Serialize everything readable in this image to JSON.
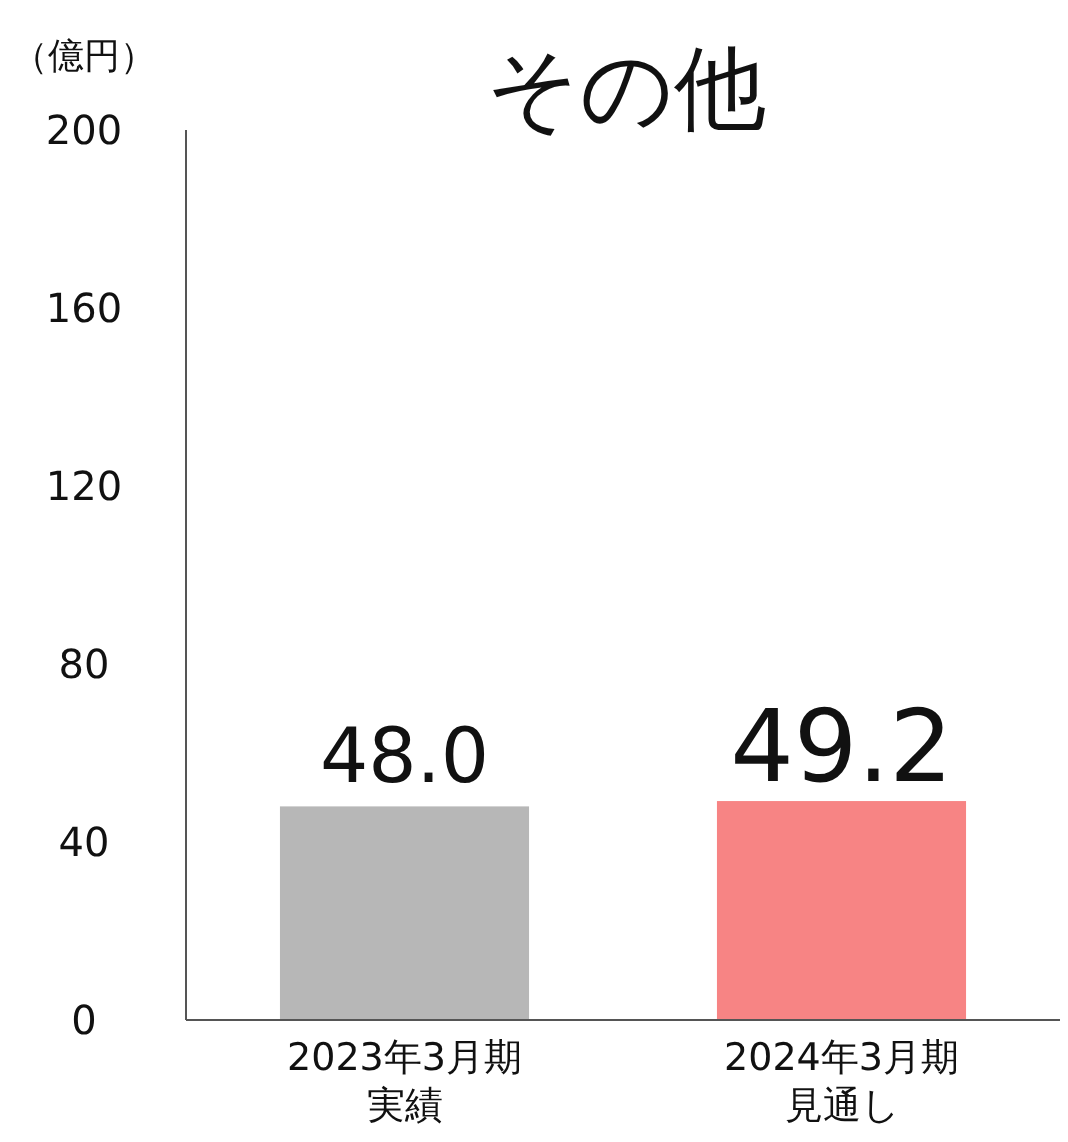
{
  "chart_data": {
    "type": "bar",
    "title": "その他",
    "ylabel": "（億円）",
    "categories": [
      "2023年3月期実績",
      "2024年3月期見通し"
    ],
    "values": [
      48.0,
      49.2
    ],
    "colors": [
      "#b7b7b7",
      "#f78484"
    ],
    "value_labels": [
      "48.0",
      "49.2"
    ],
    "ylim": [
      0,
      200
    ],
    "yticks": [
      0,
      40,
      80,
      120,
      160,
      200
    ],
    "grid": false
  }
}
